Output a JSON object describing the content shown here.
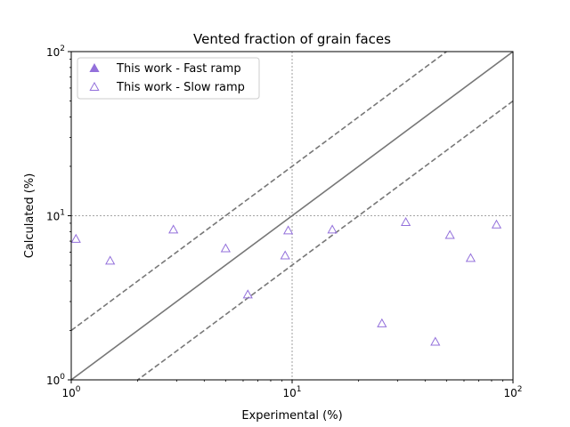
{
  "chart_data": {
    "type": "scatter",
    "title": "Vented fraction of grain faces",
    "xlabel": "Experimental (%)",
    "ylabel": "Calculated (%)",
    "xscale": "log",
    "yscale": "log",
    "xlim": [
      1,
      100
    ],
    "ylim": [
      1,
      100
    ],
    "xticks": [
      {
        "value": 1,
        "base": "10",
        "exp": "0"
      },
      {
        "value": 10,
        "base": "10",
        "exp": "1"
      },
      {
        "value": 100,
        "base": "10",
        "exp": "2"
      }
    ],
    "yticks": [
      {
        "value": 1,
        "base": "10",
        "exp": "0"
      },
      {
        "value": 10,
        "base": "10",
        "exp": "1"
      },
      {
        "value": 100,
        "base": "10",
        "exp": "2"
      }
    ],
    "grid": "dotted at major ticks",
    "legend_position": "top-left",
    "reference_lines": [
      {
        "style": "solid",
        "x": [
          1,
          100
        ],
        "y": [
          1,
          100
        ],
        "color": "#777777"
      },
      {
        "style": "dashed",
        "x": [
          1,
          100
        ],
        "y": [
          2,
          200
        ],
        "color": "#777777"
      },
      {
        "style": "dashed",
        "x": [
          1,
          100
        ],
        "y": [
          0.5,
          50
        ],
        "color": "#777777"
      }
    ],
    "series": [
      {
        "name": "This work - Fast ramp",
        "marker": "filled-triangle",
        "color": "#9370DB",
        "points": []
      },
      {
        "name": "This work - Slow ramp",
        "marker": "open-triangle",
        "color": "#9370DB",
        "points": [
          {
            "x": 1.05,
            "y": 7.2
          },
          {
            "x": 1.5,
            "y": 5.3
          },
          {
            "x": 2.9,
            "y": 8.2
          },
          {
            "x": 5.0,
            "y": 6.3
          },
          {
            "x": 6.3,
            "y": 3.3
          },
          {
            "x": 9.3,
            "y": 5.7
          },
          {
            "x": 9.6,
            "y": 8.1
          },
          {
            "x": 15.2,
            "y": 8.2
          },
          {
            "x": 25.5,
            "y": 2.2
          },
          {
            "x": 32.7,
            "y": 9.1
          },
          {
            "x": 44.5,
            "y": 1.7
          },
          {
            "x": 51.8,
            "y": 7.6
          },
          {
            "x": 64.3,
            "y": 5.5
          },
          {
            "x": 84.2,
            "y": 8.8
          }
        ]
      }
    ]
  }
}
